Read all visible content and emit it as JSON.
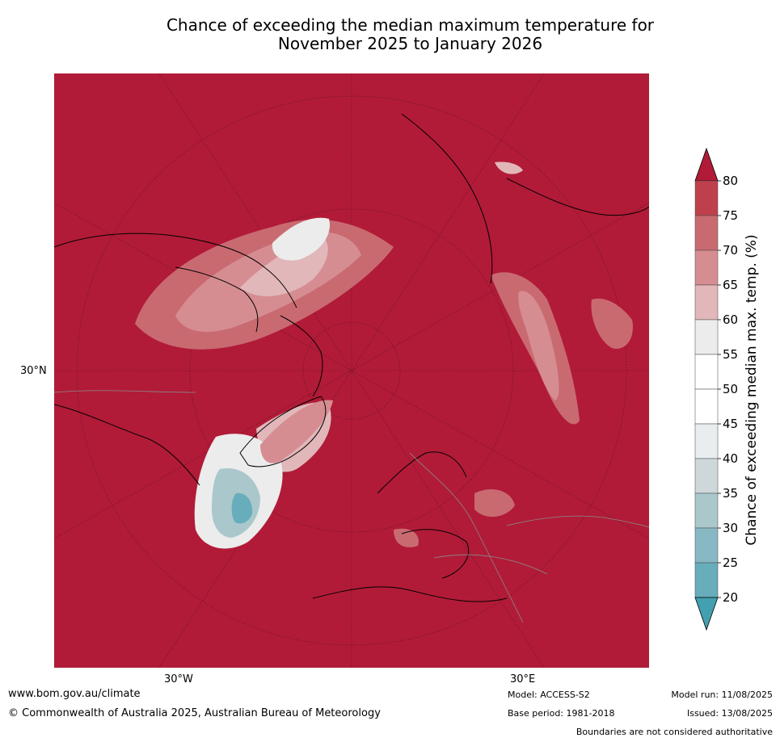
{
  "title": {
    "line1": "Chance of exceeding the median maximum temperature for",
    "line2": "November 2025 to January 2026"
  },
  "axes": {
    "lat_label": "30°N",
    "lon_labels": [
      "30°W",
      "30°E"
    ]
  },
  "colorbar": {
    "label": "Chance of exceeding median max. temp. (%)",
    "ticks": [
      "80",
      "75",
      "70",
      "65",
      "60",
      "55",
      "50",
      "45",
      "40",
      "35",
      "30",
      "25",
      "20"
    ],
    "colors": [
      "#b11b38",
      "#bf404d",
      "#c96a71",
      "#d68d92",
      "#e1b7ba",
      "#ececec",
      "#ffffff",
      "#ffffff",
      "#e8edf0",
      "#ced8db",
      "#aac7cc",
      "#88b8c3",
      "#67adbb",
      "#43a0b0"
    ]
  },
  "colors": {
    "high": "#b11b38",
    "warm_light": "#e1b7ba",
    "neutral": "#ffffff",
    "cool": "#67adbb"
  },
  "footer": {
    "website": "www.bom.gov.au/climate",
    "copyright": "© Commonwealth of Australia 2025, Australian Bureau of Meteorology",
    "model": "Model: ACCESS-S2",
    "base_period": "Base period: 1981-2018",
    "model_run": "Model run: 11/08/2025",
    "issued": "Issued: 13/08/2025",
    "disclaimer": "Boundaries are not considered authoritative"
  }
}
